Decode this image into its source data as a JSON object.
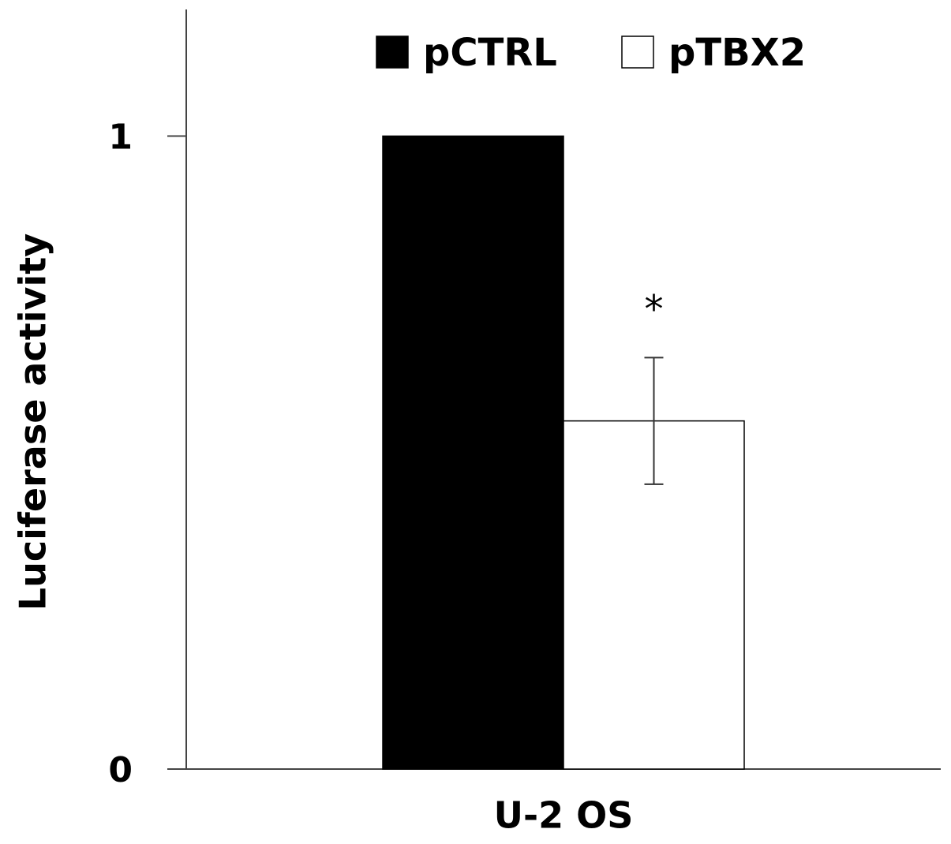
{
  "chart_data": {
    "type": "bar",
    "y_label": "Luciferase activity",
    "categories": [
      "U-2 OS"
    ],
    "series": [
      {
        "name": "pCTRL",
        "color": "#000000",
        "values": [
          1
        ]
      },
      {
        "name": "pTBX2",
        "color": "#ffffff",
        "values": [
          0.55
        ],
        "errors": [
          0.1
        ],
        "annotation": "*"
      }
    ],
    "ylim": [
      0,
      1.2
    ],
    "yticks": [
      0,
      1
    ],
    "grid": false,
    "legend": "top"
  }
}
